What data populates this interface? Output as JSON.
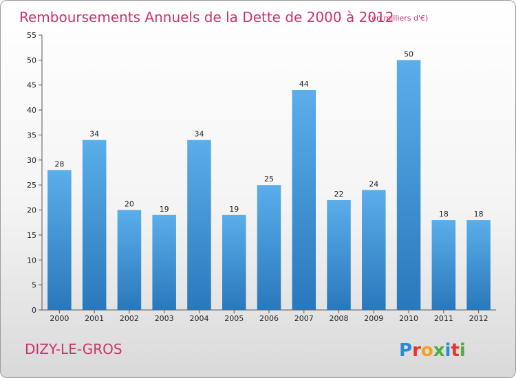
{
  "header": {
    "title": "Remboursements Annuels de la Dette de 2000 à 2012",
    "unit": "(en milliers d'€)"
  },
  "footer": {
    "commune": "DIZY-LE-GROS",
    "logo_letters": [
      "P",
      "r",
      "o",
      "x",
      "i",
      "t",
      "i"
    ],
    "logo_colors": [
      "#2a8ad6",
      "#e8332a",
      "#f3a21a",
      "#4cae3c",
      "#2a8ad6",
      "#e8332a",
      "#4cae3c"
    ]
  },
  "chart_data": {
    "type": "bar",
    "title": "Remboursements Annuels de la Dette de 2000 à 2012",
    "categories": [
      "2000",
      "2001",
      "2002",
      "2003",
      "2004",
      "2005",
      "2006",
      "2007",
      "2008",
      "2009",
      "2010",
      "2011",
      "2012"
    ],
    "values": [
      28,
      34,
      20,
      19,
      34,
      19,
      25,
      44,
      22,
      24,
      50,
      18,
      18
    ],
    "ylim": [
      0,
      55
    ],
    "yticks": [
      0,
      5,
      10,
      15,
      20,
      25,
      30,
      35,
      40,
      45,
      50,
      55
    ],
    "grid": false,
    "colors": {
      "bar_light": "#5aaeea",
      "bar_dark": "#2a78bc",
      "axis": "#555555"
    }
  }
}
